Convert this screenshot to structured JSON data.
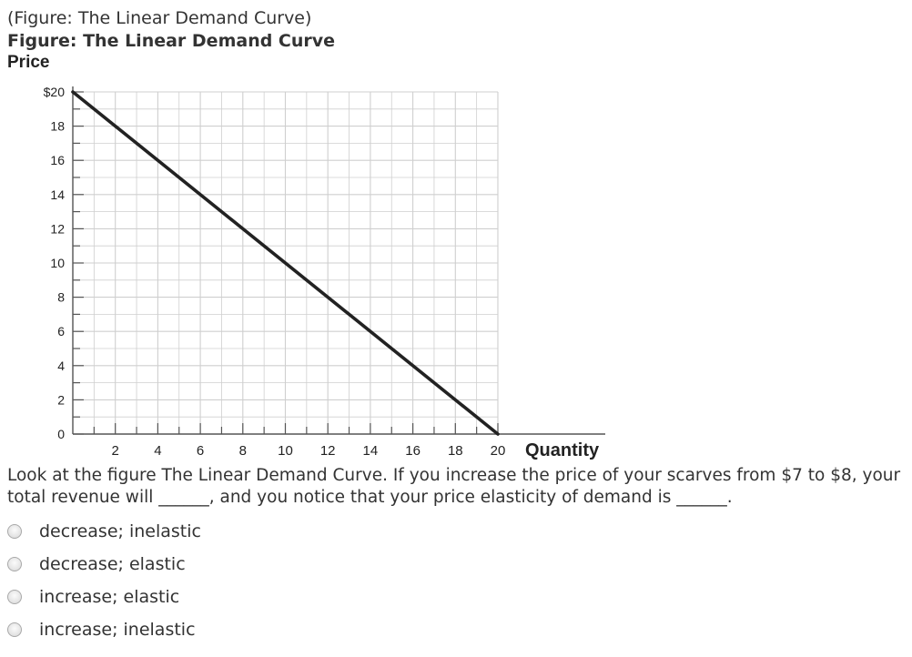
{
  "figure": {
    "caption": "(Figure: The Linear Demand Curve)",
    "title": "Figure: The Linear Demand Curve"
  },
  "chart_data": {
    "type": "line",
    "title": "Figure: The Linear Demand Curve",
    "xlabel": "Quantity",
    "ylabel": "Price",
    "xlim": [
      0,
      20
    ],
    "ylim": [
      0,
      20
    ],
    "x_ticks": [
      "2",
      "4",
      "6",
      "8",
      "10",
      "12",
      "14",
      "16",
      "18",
      "20"
    ],
    "y_ticks": [
      "0",
      "2",
      "4",
      "6",
      "8",
      "10",
      "12",
      "14",
      "16",
      "18",
      "$20"
    ],
    "grid": true,
    "series": [
      {
        "x": [
          0,
          20
        ],
        "y": [
          20,
          0
        ]
      }
    ],
    "colors": {
      "line": "#222222",
      "grid": "#cfcfcf",
      "axis": "#555555"
    }
  },
  "question": {
    "text": "Look at the figure The Linear Demand Curve. If you increase the price of your scarves from $7 to $8, your total revenue will ______, and you notice that your price elasticity of demand is ______."
  },
  "choices": [
    {
      "label": "decrease; inelastic"
    },
    {
      "label": "decrease; elastic"
    },
    {
      "label": "increase; elastic"
    },
    {
      "label": "increase; inelastic"
    }
  ]
}
